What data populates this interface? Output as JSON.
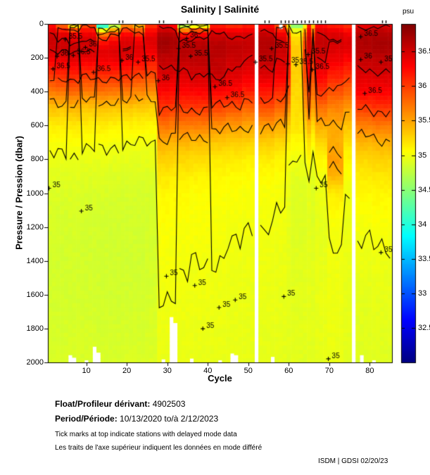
{
  "figure": {
    "footer": "ISDM | GDSI 02/20/23",
    "captions": {
      "float_label": "Float/Profileur dérivant:",
      "float_value": "4902503",
      "period_label": "Period/Période:",
      "period_value": "10/13/2020  to/à  2/12/2023",
      "note_en": "Tick marks at top indicate stations with delayed mode data",
      "note_fr": "Les traits de l'axe supérieur indiquent les données en mode différé"
    }
  },
  "chart_data": {
    "type": "heatmap",
    "title": "Salinity | Salinité",
    "xlabel": "Cycle",
    "ylabel": "Pressure / Pression (dbar)",
    "x_range": [
      1,
      85
    ],
    "y_range": [
      0,
      2000
    ],
    "y_axis_reversed": true,
    "grid": false,
    "x_ticks": [
      10,
      20,
      30,
      40,
      50,
      60,
      70,
      80
    ],
    "y_ticks": [
      0,
      200,
      400,
      600,
      800,
      1000,
      1200,
      1400,
      1600,
      1800,
      2000
    ],
    "colorbar": {
      "label": "psu",
      "colormap": "jet",
      "vmin": 32.0,
      "vmax": 36.9,
      "ticks": [
        36.5,
        36,
        35.5,
        35,
        34.5,
        34,
        33.5,
        33,
        32.5
      ]
    },
    "missing_cycles": [
      52,
      76
    ],
    "surface_gaps": [
      {
        "cycle": 58,
        "to_dbar": 30
      }
    ],
    "profile_bottom_ends": [
      {
        "c": 6,
        "d": 1955
      },
      {
        "c": 7,
        "d": 1970
      },
      {
        "c": 10,
        "d": 1985
      },
      {
        "c": 12,
        "d": 1905
      },
      {
        "c": 13,
        "d": 1940
      },
      {
        "c": 29,
        "d": 1980
      },
      {
        "c": 31,
        "d": 1730
      },
      {
        "c": 32,
        "d": 1765
      },
      {
        "c": 36,
        "d": 1975
      },
      {
        "c": 43,
        "d": 1985
      },
      {
        "c": 46,
        "d": 1945
      },
      {
        "c": 47,
        "d": 1955
      },
      {
        "c": 56,
        "d": 1965
      },
      {
        "c": 78,
        "d": 1955
      },
      {
        "c": 81,
        "d": 1985
      }
    ],
    "delayed_mode_cycles": [
      18,
      19,
      28,
      29,
      35,
      36,
      54,
      55,
      58,
      59,
      60,
      61,
      62,
      63,
      64,
      65,
      66,
      67,
      68,
      69,
      83,
      84
    ],
    "depth_nodes": [
      0,
      30,
      60,
      100,
      150,
      200,
      300,
      400,
      500,
      600,
      700,
      800,
      900,
      1000,
      1200,
      1400,
      1600,
      1800,
      2000
    ],
    "profiles": [
      {
        "cycles": [
          1,
          2
        ],
        "s": [
          36.2,
          36.35,
          36.5,
          36.55,
          36.5,
          36.35,
          36.05,
          35.7,
          35.35,
          35.15,
          35.05,
          34.98,
          34.93,
          34.9,
          34.87,
          34.86,
          34.86,
          34.87,
          34.88
        ]
      },
      {
        "cycles": [
          3,
          5
        ],
        "s": [
          35.7,
          36.1,
          36.4,
          36.5,
          36.55,
          36.4,
          36.1,
          35.75,
          35.35,
          35.15,
          35.04,
          34.97,
          34.92,
          34.89,
          34.86,
          34.85,
          34.86,
          34.87,
          34.88
        ]
      },
      {
        "cycles": [
          6,
          8
        ],
        "s": [
          34.9,
          35.8,
          36.25,
          36.45,
          36.55,
          36.45,
          36.15,
          35.8,
          35.4,
          35.17,
          35.05,
          34.98,
          34.93,
          34.9,
          34.87,
          34.86,
          34.86,
          34.87,
          34.89
        ]
      },
      {
        "cycles": [
          9,
          12
        ],
        "s": [
          35.9,
          36.15,
          36.35,
          36.5,
          36.5,
          36.4,
          36.05,
          35.7,
          35.33,
          35.14,
          35.03,
          34.96,
          34.91,
          34.88,
          34.86,
          34.85,
          34.86,
          34.87,
          34.88
        ]
      },
      {
        "cycles": [
          13,
          15
        ],
        "s": [
          33.6,
          34.8,
          35.7,
          36.15,
          36.4,
          36.4,
          36.1,
          35.75,
          35.35,
          35.15,
          35.03,
          34.96,
          34.91,
          34.88,
          34.85,
          34.85,
          34.85,
          34.86,
          34.88
        ]
      },
      {
        "cycles": [
          16,
          18
        ],
        "s": [
          34.4,
          35.3,
          35.95,
          36.3,
          36.45,
          36.4,
          36.1,
          35.72,
          35.32,
          35.13,
          35.02,
          34.95,
          34.9,
          34.87,
          34.85,
          34.84,
          34.85,
          34.86,
          34.88
        ]
      },
      {
        "cycles": [
          19,
          21
        ],
        "s": [
          35.5,
          35.95,
          36.25,
          36.45,
          36.5,
          36.4,
          36.1,
          35.72,
          35.32,
          35.12,
          35.01,
          34.95,
          34.9,
          34.87,
          34.85,
          34.84,
          34.85,
          34.87,
          34.89
        ]
      },
      {
        "cycles": [
          22,
          24
        ],
        "s": [
          35.3,
          35.75,
          36.05,
          36.35,
          36.45,
          36.35,
          36.0,
          35.65,
          35.3,
          35.1,
          35.0,
          34.94,
          34.9,
          34.87,
          34.85,
          34.84,
          34.86,
          34.87,
          34.89
        ]
      },
      {
        "cycles": [
          25,
          27
        ],
        "s": [
          36.0,
          36.2,
          36.35,
          36.45,
          36.4,
          36.25,
          35.95,
          35.6,
          35.28,
          35.1,
          35.0,
          34.95,
          34.9,
          34.87,
          34.86,
          34.86,
          34.87,
          34.88,
          34.9
        ]
      },
      {
        "cycles": [
          28,
          30
        ],
        "s": [
          36.3,
          36.5,
          36.65,
          36.75,
          36.7,
          36.6,
          36.45,
          36.28,
          36.05,
          35.75,
          35.45,
          35.28,
          35.17,
          35.1,
          35.05,
          35.02,
          35.0,
          34.98,
          34.97
        ]
      },
      {
        "cycles": [
          31,
          32
        ],
        "s": [
          36.2,
          36.45,
          36.6,
          36.7,
          36.65,
          36.6,
          36.45,
          36.25,
          36.0,
          35.7,
          35.42,
          35.26,
          35.16,
          35.09,
          35.04,
          35.02,
          35.0,
          34.99,
          34.98
        ]
      },
      {
        "cycles": [
          33,
          35
        ],
        "s": [
          34.3,
          35.5,
          36.2,
          36.55,
          36.65,
          36.6,
          36.45,
          36.28,
          36.0,
          35.72,
          35.42,
          35.25,
          35.15,
          35.08,
          35.04,
          35.01,
          34.99,
          34.98,
          34.97
        ]
      },
      {
        "cycles": [
          36,
          40
        ],
        "s": [
          34.6,
          35.8,
          36.3,
          36.6,
          36.65,
          36.62,
          36.5,
          36.3,
          36.02,
          35.7,
          35.4,
          35.22,
          35.12,
          35.06,
          35.03,
          35.0,
          34.99,
          34.97,
          34.96
        ]
      },
      {
        "cycles": [
          41,
          44
        ],
        "s": [
          36.1,
          36.3,
          36.5,
          36.6,
          36.65,
          36.6,
          36.55,
          36.3,
          35.95,
          35.6,
          35.33,
          35.17,
          35.09,
          35.05,
          35.02,
          35.0,
          34.98,
          34.97,
          34.96
        ]
      },
      {
        "cycles": [
          45,
          48
        ],
        "s": [
          36.0,
          36.25,
          36.45,
          36.55,
          36.6,
          36.55,
          36.45,
          36.25,
          35.9,
          35.55,
          35.3,
          35.15,
          35.08,
          35.04,
          35.01,
          34.99,
          34.97,
          34.96,
          34.95
        ]
      },
      {
        "cycles": [
          49,
          51
        ],
        "s": [
          36.1,
          36.3,
          36.45,
          36.55,
          36.55,
          36.5,
          36.38,
          36.15,
          35.8,
          35.5,
          35.27,
          35.13,
          35.06,
          35.03,
          35.0,
          34.98,
          34.97,
          34.96,
          34.95
        ]
      },
      {
        "cycles": [
          53,
          56
        ],
        "s": [
          36.2,
          36.4,
          36.55,
          36.65,
          36.65,
          36.6,
          36.45,
          36.2,
          35.9,
          35.55,
          35.3,
          35.15,
          35.07,
          35.03,
          35.0,
          34.98,
          34.97,
          34.95,
          34.94
        ]
      },
      {
        "cycles": [
          57,
          59
        ],
        "s": [
          35.8,
          36.1,
          36.35,
          36.5,
          36.55,
          36.5,
          36.35,
          36.1,
          35.78,
          35.48,
          35.25,
          35.12,
          35.05,
          35.01,
          34.99,
          34.97,
          34.96,
          34.95,
          34.94
        ]
      },
      {
        "cycles": [
          60,
          60
        ],
        "s": [
          34.8,
          35.5,
          35.9,
          36.1,
          36.2,
          36.2,
          36.1,
          35.9,
          35.6,
          35.32,
          35.13,
          35.03,
          34.99,
          34.96,
          34.95,
          34.95,
          34.94,
          34.94,
          34.93
        ]
      },
      {
        "cycles": [
          61,
          63
        ],
        "s": [
          34.3,
          34.9,
          35.15,
          35.25,
          35.3,
          35.3,
          35.28,
          35.25,
          35.22,
          35.18,
          35.08,
          34.99,
          34.93,
          34.9,
          34.9,
          34.92,
          34.93,
          34.93,
          34.93
        ]
      },
      {
        "cycles": [
          64,
          64
        ],
        "s": [
          35.0,
          35.4,
          35.7,
          35.9,
          36.0,
          36.0,
          35.9,
          35.7,
          35.5,
          35.28,
          35.1,
          34.99,
          34.93,
          34.9,
          34.91,
          34.92,
          34.93,
          34.93,
          34.92
        ]
      },
      {
        "cycles": [
          65,
          65
        ],
        "s": [
          36.1,
          36.3,
          36.45,
          36.55,
          36.5,
          36.45,
          36.3,
          36.05,
          35.75,
          35.45,
          35.22,
          35.08,
          34.99,
          34.95,
          34.93,
          34.94,
          34.94,
          34.94,
          34.93
        ]
      },
      {
        "cycles": [
          66,
          66
        ],
        "s": [
          35.2,
          35.6,
          35.9,
          36.1,
          36.15,
          36.1,
          35.95,
          35.75,
          35.5,
          35.25,
          35.07,
          34.97,
          34.92,
          34.9,
          34.9,
          34.92,
          34.93,
          34.93,
          34.92
        ]
      },
      {
        "cycles": [
          67,
          69
        ],
        "s": [
          36.2,
          36.4,
          36.5,
          36.6,
          36.55,
          36.5,
          36.32,
          36.05,
          35.75,
          35.48,
          35.25,
          35.1,
          35.01,
          34.97,
          34.94,
          34.95,
          34.96,
          34.95,
          34.94
        ]
      },
      {
        "cycles": [
          70,
          73
        ],
        "s": [
          36.1,
          36.3,
          36.45,
          36.5,
          36.45,
          36.38,
          36.15,
          35.9,
          35.65,
          35.48,
          35.45,
          35.55,
          35.42,
          35.15,
          35.02,
          34.99,
          34.98,
          34.97,
          34.96
        ]
      },
      {
        "cycles": [
          74,
          75
        ],
        "s": [
          36.0,
          36.2,
          36.35,
          36.45,
          36.4,
          36.3,
          36.05,
          35.8,
          35.55,
          35.35,
          35.2,
          35.1,
          35.03,
          34.99,
          34.97,
          34.96,
          34.95,
          34.94,
          34.93
        ]
      },
      {
        "cycles": [
          77,
          80
        ],
        "s": [
          36.3,
          36.5,
          36.62,
          36.68,
          36.65,
          36.6,
          36.45,
          36.3,
          36.0,
          35.68,
          35.42,
          35.25,
          35.15,
          35.08,
          35.02,
          34.97,
          34.94,
          34.92,
          34.91
        ]
      },
      {
        "cycles": [
          81,
          85
        ],
        "s": [
          36.4,
          36.55,
          36.65,
          36.7,
          36.68,
          36.6,
          36.48,
          36.3,
          36.05,
          35.72,
          35.45,
          35.28,
          35.17,
          35.1,
          35.03,
          34.98,
          34.95,
          34.93,
          34.91
        ]
      }
    ],
    "contour_levels": [
      35,
      35.5,
      36,
      36.5
    ],
    "contour_labels": [
      {
        "t": "36",
        "c": 4,
        "d": 170
      },
      {
        "t": "36.5",
        "c": 3,
        "d": 245
      },
      {
        "t": "35.5",
        "c": 6,
        "d": 72
      },
      {
        "t": "36.5",
        "c": 8,
        "d": 165
      },
      {
        "t": "36",
        "c": 11,
        "d": 118
      },
      {
        "t": "36.5",
        "c": 13,
        "d": 265
      },
      {
        "t": "36",
        "c": 20,
        "d": 195
      },
      {
        "t": "35.5",
        "c": 24,
        "d": 205
      },
      {
        "t": "36",
        "c": 29,
        "d": 315
      },
      {
        "t": "35.5",
        "c": 34,
        "d": 125
      },
      {
        "t": "36",
        "c": 36,
        "d": 65
      },
      {
        "t": "35.5",
        "c": 37,
        "d": 170
      },
      {
        "t": "36.5",
        "c": 43,
        "d": 350
      },
      {
        "t": "36.5",
        "c": 46,
        "d": 415
      },
      {
        "t": "35.5",
        "c": 53,
        "d": 205
      },
      {
        "t": "35.5",
        "c": 57,
        "d": 125
      },
      {
        "t": "35",
        "c": 61,
        "d": 215
      },
      {
        "t": "35.5",
        "c": 63,
        "d": 220
      },
      {
        "t": "35.5",
        "c": 66,
        "d": 160
      },
      {
        "t": "36.5",
        "c": 67,
        "d": 250
      },
      {
        "t": "35",
        "c": 68,
        "d": 950
      },
      {
        "t": "36",
        "c": 79,
        "d": 190
      },
      {
        "t": "36.5",
        "c": 79,
        "d": 55
      },
      {
        "t": "36.5",
        "c": 80,
        "d": 390
      },
      {
        "t": "35.5",
        "c": 84,
        "d": 205
      },
      {
        "t": "35",
        "c": 84,
        "d": 1330
      },
      {
        "t": "35",
        "c": 2,
        "d": 950
      },
      {
        "t": "35",
        "c": 10,
        "d": 1085
      },
      {
        "t": "35",
        "c": 38,
        "d": 1525
      },
      {
        "t": "35",
        "c": 44,
        "d": 1655
      },
      {
        "t": "35",
        "c": 48,
        "d": 1610
      },
      {
        "t": "35",
        "c": 40,
        "d": 1780
      },
      {
        "t": "35",
        "c": 60,
        "d": 1590
      },
      {
        "t": "35",
        "c": 71,
        "d": 1958
      },
      {
        "t": "35",
        "c": 31,
        "d": 1470
      }
    ]
  }
}
